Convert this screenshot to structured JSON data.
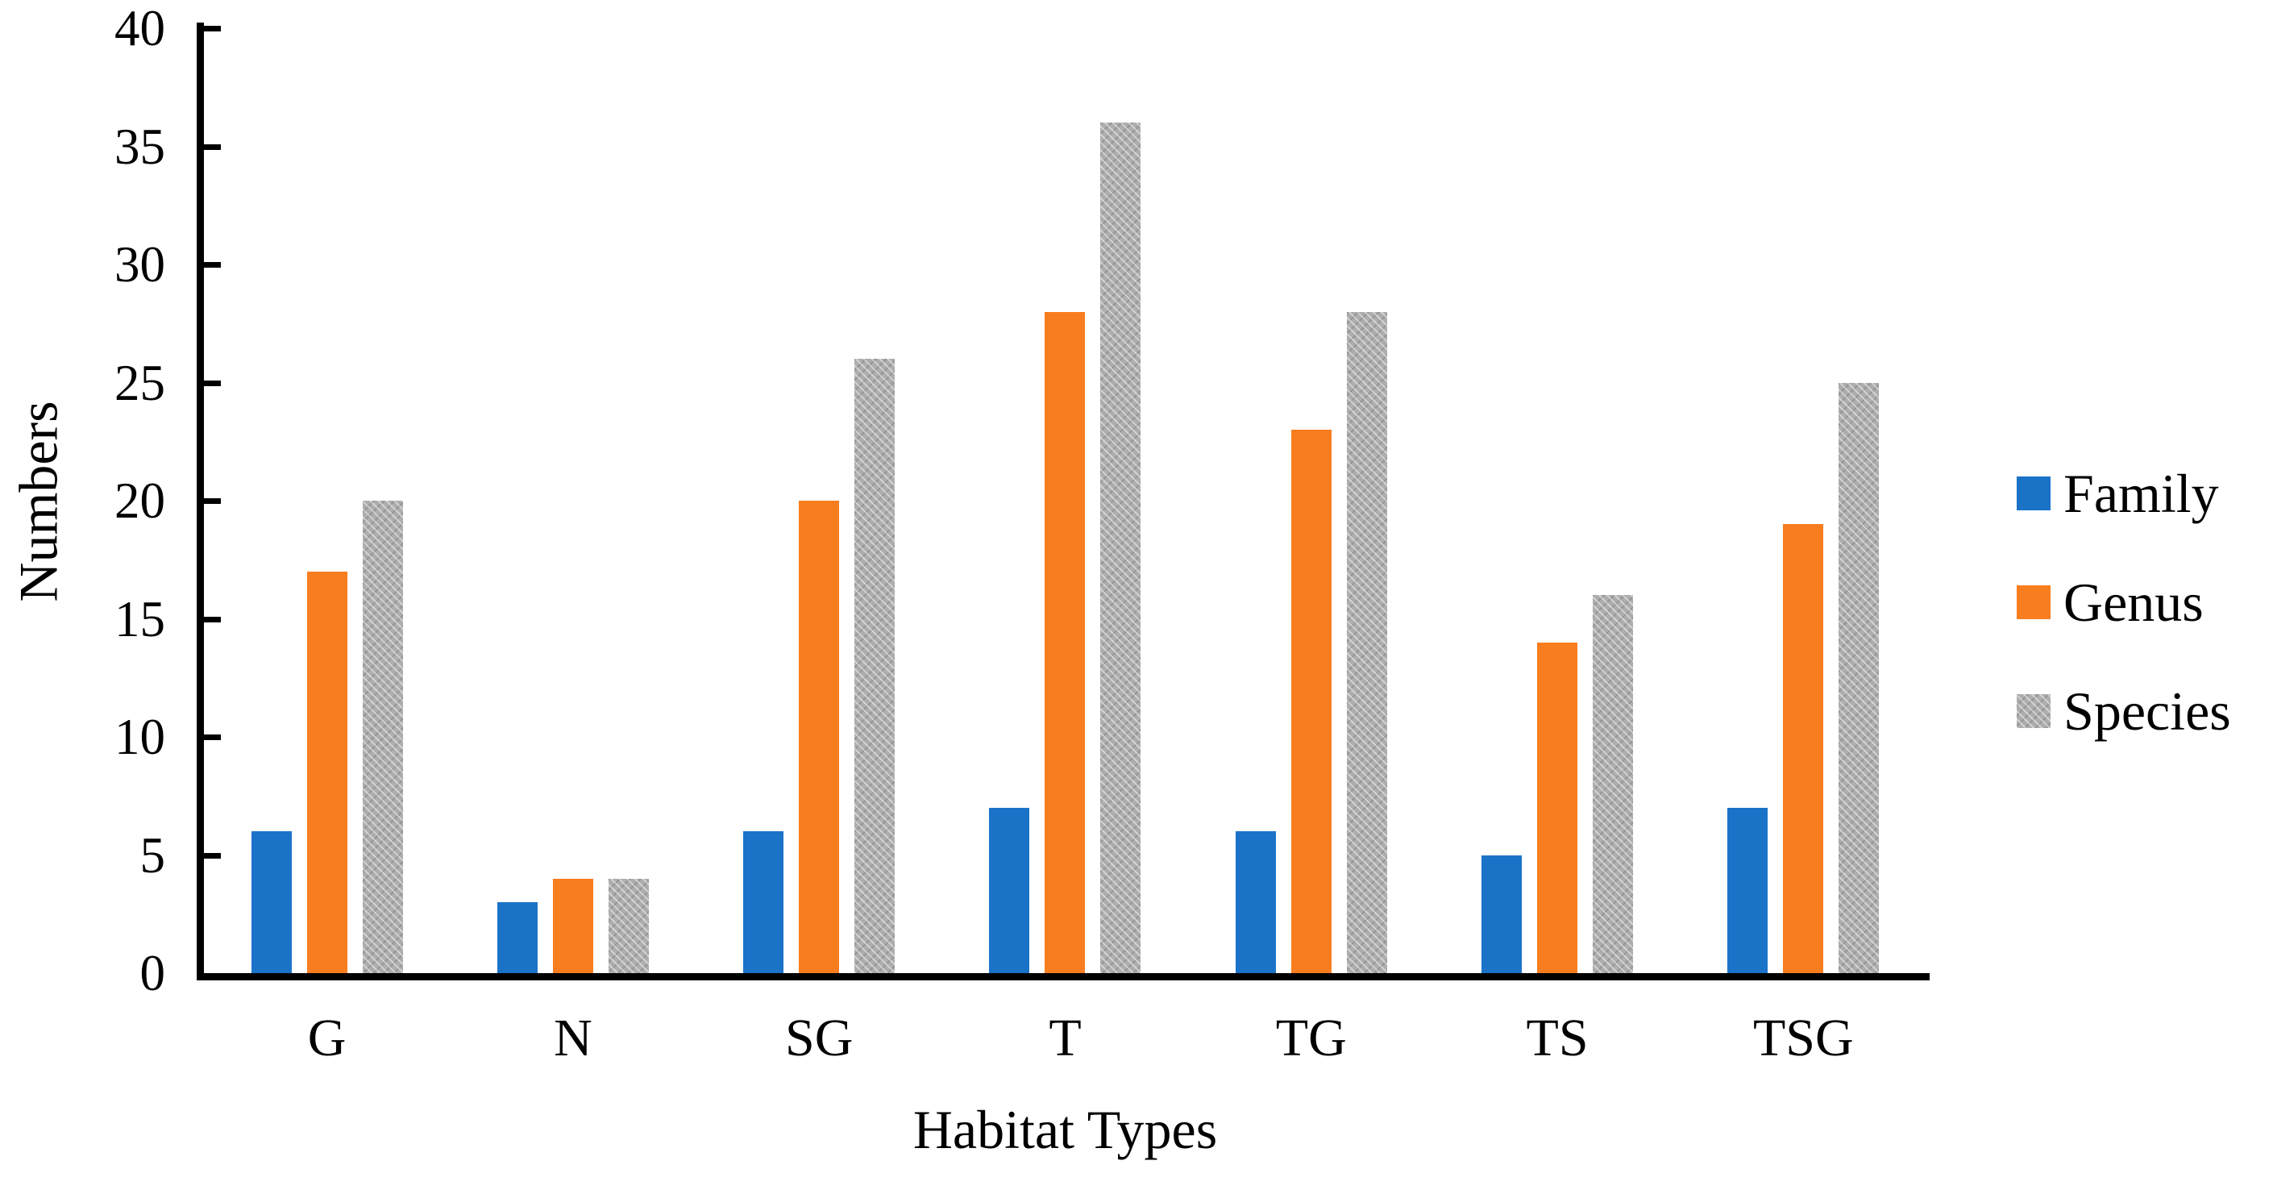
{
  "chart_data": {
    "type": "bar",
    "title": "",
    "xlabel": "Habitat Types",
    "ylabel": "Numbers",
    "categories": [
      "G",
      "N",
      "SG",
      "T",
      "TG",
      "TS",
      "TSG"
    ],
    "series": [
      {
        "name": "Family",
        "color": "#1b73c8",
        "pattern": false,
        "values": [
          6,
          3,
          6,
          7,
          6,
          5,
          7
        ]
      },
      {
        "name": "Genus",
        "color": "#f87d1f",
        "pattern": false,
        "values": [
          17,
          4,
          20,
          28,
          23,
          14,
          19
        ]
      },
      {
        "name": "Species",
        "color": "#adadad",
        "pattern": true,
        "values": [
          20,
          4,
          26,
          36,
          28,
          16,
          25
        ]
      }
    ],
    "ylim": [
      0,
      40
    ],
    "yticks": [
      0,
      5,
      10,
      15,
      20,
      25,
      30,
      35,
      40
    ],
    "grid": false,
    "legend_position": "right",
    "axis_color": "#000000"
  }
}
